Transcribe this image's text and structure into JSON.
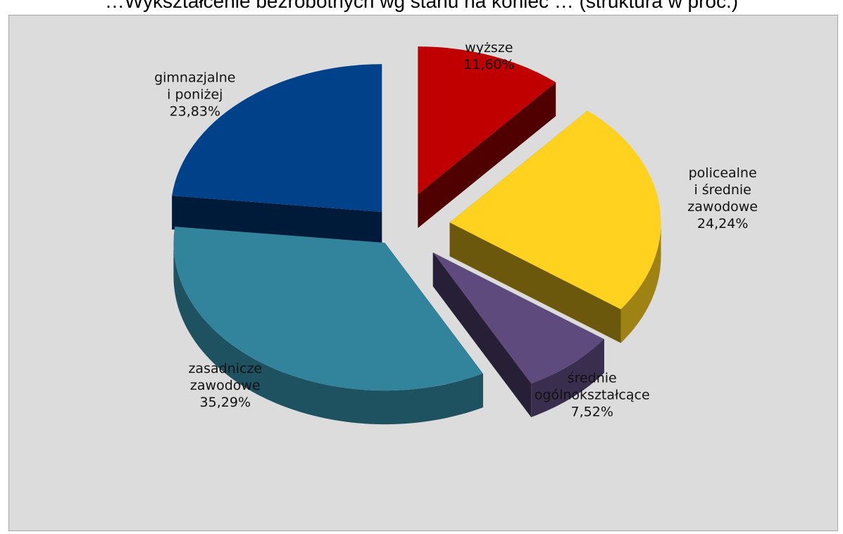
{
  "top_caption": "…Wykształcenie bezrobotnych wg stanu na koniec … (struktura w proc.)",
  "chart_data": {
    "type": "pie",
    "title": "",
    "style": "3d-exploded",
    "slices": [
      {
        "label_lines": [
          "wyższe"
        ],
        "value_text": "11,60%",
        "value": 11.6,
        "color": "#c00000"
      },
      {
        "label_lines": [
          "policealne",
          "i średnie",
          "zawodowe"
        ],
        "value_text": "24,24%",
        "value": 24.24,
        "color": "#ffd21f"
      },
      {
        "label_lines": [
          "średnie",
          "ogólnokształcące"
        ],
        "value_text": "7,52%",
        "value": 7.52,
        "color": "#5e4a7d"
      },
      {
        "label_lines": [
          "zasadnicze",
          "zawodowe"
        ],
        "value_text": "35,29%",
        "value": 35.29,
        "color": "#31849b"
      },
      {
        "label_lines": [
          "gimnazjalne",
          "i poniżej"
        ],
        "value_text": "23,83%",
        "value": 23.83,
        "color": "#004189"
      }
    ]
  }
}
